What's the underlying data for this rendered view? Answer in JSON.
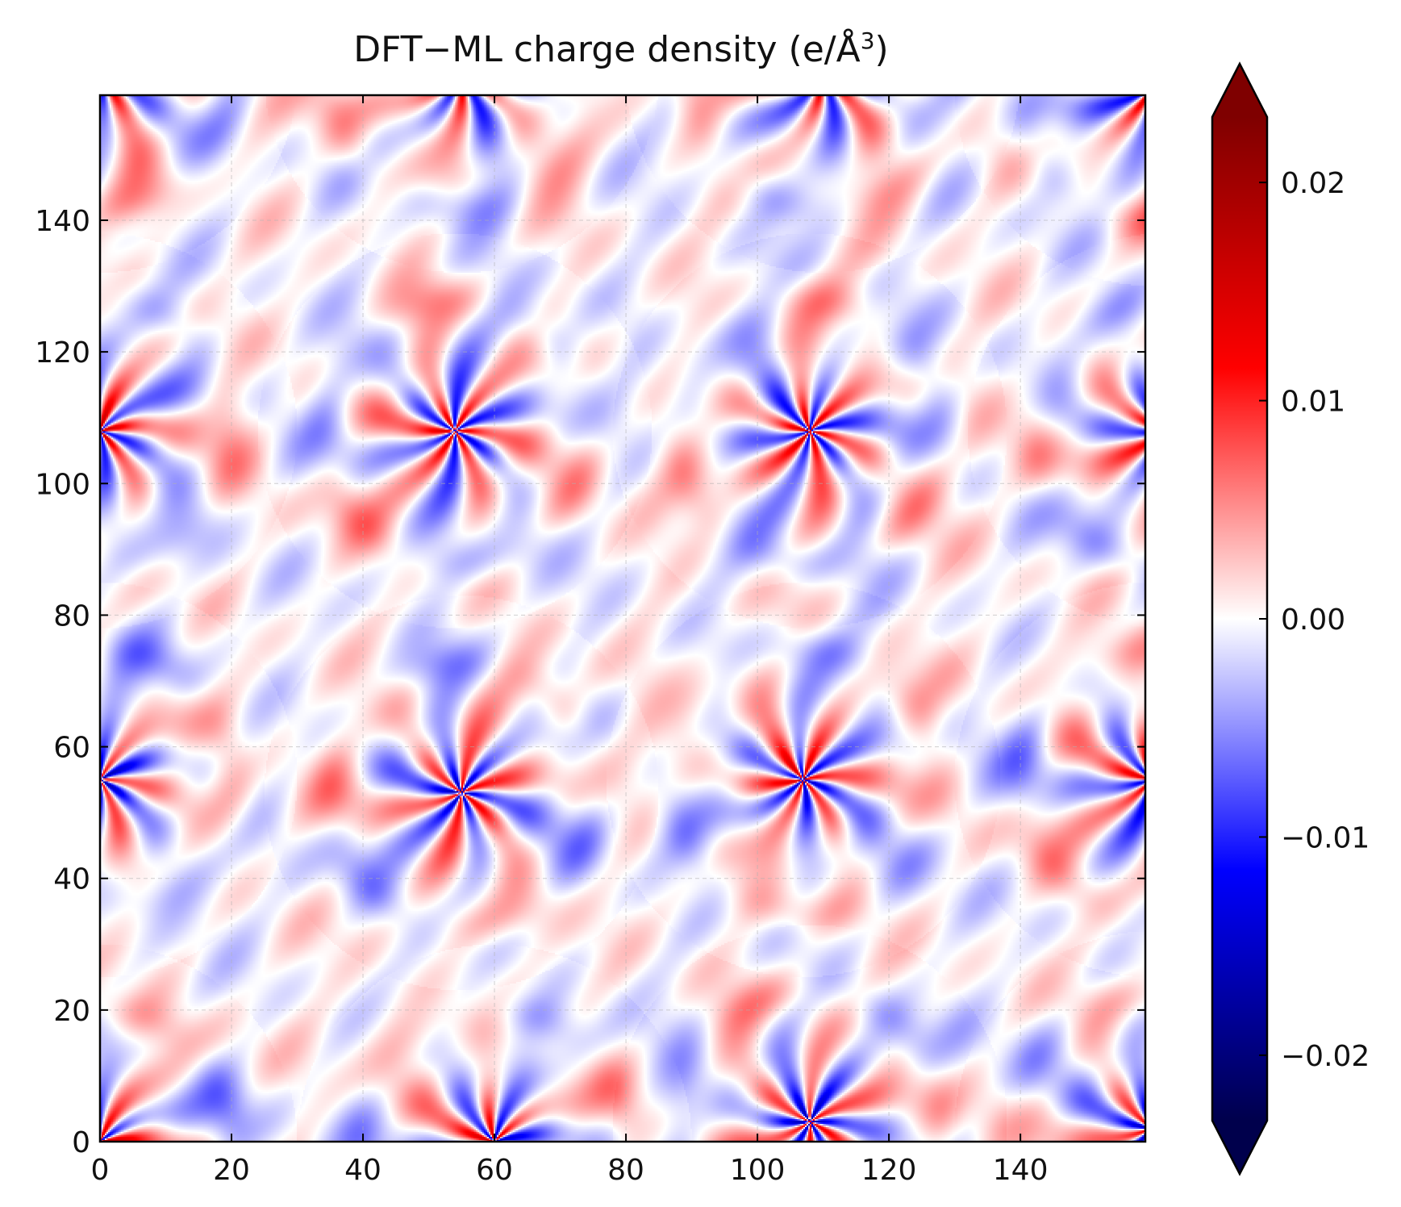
{
  "chart_data": {
    "type": "heatmap",
    "title": "DFT−ML charge density (e/Å",
    "title_superscript": "3",
    "title_close": ")",
    "xlabel": "",
    "ylabel": "",
    "xlim": [
      0,
      159
    ],
    "ylim": [
      0,
      159
    ],
    "grid": true,
    "x_ticks": [
      0,
      20,
      40,
      60,
      80,
      100,
      120,
      140
    ],
    "x_tick_labels": [
      "0",
      "20",
      "40",
      "60",
      "80",
      "100",
      "120",
      "140"
    ],
    "y_ticks": [
      0,
      20,
      40,
      60,
      80,
      100,
      120,
      140
    ],
    "y_tick_labels": [
      "0",
      "20",
      "40",
      "60",
      "80",
      "100",
      "120",
      "140"
    ],
    "colormap": "seismic",
    "colorbar": {
      "range": [
        -0.023,
        0.023
      ],
      "extend": "both",
      "ticks": [
        -0.02,
        -0.01,
        0.0,
        0.01,
        0.02
      ],
      "tick_labels": [
        "−0.02",
        "−0.01",
        "0.00",
        "0.01",
        "0.02"
      ],
      "colors": [
        "#00004c",
        "#0000ff",
        "#ffffff",
        "#ff0000",
        "#7f0000"
      ]
    },
    "atom_sites": [
      {
        "x": 0,
        "y": 108
      },
      {
        "x": 54,
        "y": 108
      },
      {
        "x": 108,
        "y": 108
      },
      {
        "x": 162,
        "y": 108
      },
      {
        "x": 55,
        "y": 53
      },
      {
        "x": 107,
        "y": 55
      },
      {
        "x": 0,
        "y": 55
      },
      {
        "x": 160,
        "y": 55
      },
      {
        "x": 55,
        "y": 162
      },
      {
        "x": 110,
        "y": 162
      },
      {
        "x": 0,
        "y": 162
      },
      {
        "x": 160,
        "y": 160
      },
      {
        "x": 60,
        "y": 0
      },
      {
        "x": 108,
        "y": 3
      },
      {
        "x": 160,
        "y": 2
      },
      {
        "x": 0,
        "y": 0
      }
    ]
  }
}
